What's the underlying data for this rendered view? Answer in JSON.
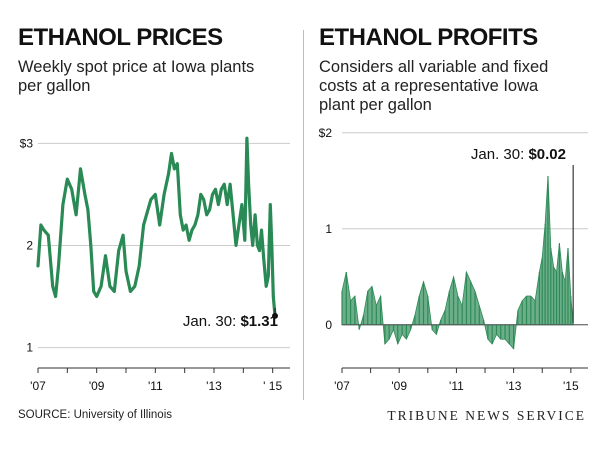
{
  "colors": {
    "line": "#2a8a55",
    "area": "#2e8b57",
    "grid": "#cccccc",
    "text": "#111111"
  },
  "left": {
    "title": "ETHANOL PRICES",
    "subtitle_lines": [
      "Weekly spot price at Iowa plants",
      "per gallon"
    ],
    "annotation_prefix": "Jan. 30: ",
    "annotation_value": "$1.31"
  },
  "right": {
    "title": "ETHANOL PROFITS",
    "subtitle_lines": [
      "Considers all variable and fixed",
      "costs at a representative Iowa",
      "plant per gallon"
    ],
    "annotation_prefix": "Jan. 30: ",
    "annotation_value": "$0.02"
  },
  "source": "SOURCE: University of Illinois",
  "credit": "TRIBUNE NEWS SERVICE",
  "chart_data": [
    {
      "type": "line",
      "title": "ETHANOL PRICES",
      "ylim": [
        0.8,
        3.15
      ],
      "y_ticks": [
        1,
        2,
        3
      ],
      "y_tick_labels": [
        "1",
        "2",
        "$3"
      ],
      "xlim": [
        2007,
        2015.25
      ],
      "x_ticks": [
        2007,
        2009,
        2011,
        2013,
        2015
      ],
      "x_tick_labels": [
        "'07",
        "'09",
        "'11",
        "'13",
        "' 15"
      ],
      "grid": true,
      "series": [
        {
          "x": [
            2007.0,
            2007.1,
            2007.2,
            2007.35,
            2007.5,
            2007.6,
            2007.7,
            2007.85,
            2008.0,
            2008.15,
            2008.3,
            2008.45,
            2008.6,
            2008.7,
            2008.8,
            2008.9,
            2009.0,
            2009.15,
            2009.3,
            2009.45,
            2009.6,
            2009.75,
            2009.9,
            2010.0,
            2010.15,
            2010.3,
            2010.45,
            2010.6,
            2010.7,
            2010.85,
            2011.0,
            2011.15,
            2011.3,
            2011.45,
            2011.55,
            2011.65,
            2011.75,
            2011.85,
            2011.95,
            2012.05,
            2012.15,
            2012.25,
            2012.35,
            2012.45,
            2012.55,
            2012.65,
            2012.75,
            2012.85,
            2012.95,
            2013.05,
            2013.15,
            2013.25,
            2013.35,
            2013.45,
            2013.55,
            2013.65,
            2013.75,
            2013.85,
            2013.95,
            2014.05,
            2014.12,
            2014.18,
            2014.25,
            2014.32,
            2014.4,
            2014.48,
            2014.55,
            2014.62,
            2014.7,
            2014.78,
            2014.85,
            2014.92,
            2014.97,
            2015.02,
            2015.08
          ],
          "y": [
            1.8,
            2.2,
            2.15,
            2.1,
            1.6,
            1.5,
            1.8,
            2.4,
            2.65,
            2.55,
            2.3,
            2.75,
            2.5,
            2.35,
            2.0,
            1.55,
            1.5,
            1.6,
            1.9,
            1.6,
            1.55,
            1.95,
            2.1,
            1.75,
            1.55,
            1.6,
            1.8,
            2.2,
            2.3,
            2.45,
            2.5,
            2.2,
            2.5,
            2.7,
            2.9,
            2.75,
            2.8,
            2.3,
            2.15,
            2.2,
            2.05,
            2.15,
            2.2,
            2.3,
            2.5,
            2.45,
            2.3,
            2.35,
            2.5,
            2.55,
            2.4,
            2.55,
            2.6,
            2.4,
            2.6,
            2.3,
            2.0,
            2.2,
            2.4,
            2.05,
            3.05,
            2.6,
            2.2,
            2.0,
            2.3,
            2.0,
            1.95,
            2.15,
            1.85,
            1.6,
            1.7,
            2.4,
            2.0,
            1.5,
            1.31
          ]
        }
      ],
      "annotation": {
        "x": 2015.08,
        "y": 1.31,
        "text": "Jan. 30: $1.31"
      }
    },
    {
      "type": "area",
      "title": "ETHANOL PROFITS",
      "ylim": [
        -0.45,
        2.05
      ],
      "y_ticks": [
        0,
        1,
        2
      ],
      "y_tick_labels": [
        "0",
        "1",
        "$2"
      ],
      "xlim": [
        2007,
        2015.25
      ],
      "x_ticks": [
        2007,
        2009,
        2011,
        2013,
        2015
      ],
      "x_tick_labels": [
        "'07",
        "'09",
        "'11",
        "'13",
        "'15"
      ],
      "grid": true,
      "series": [
        {
          "x": [
            2007.0,
            2007.15,
            2007.3,
            2007.45,
            2007.6,
            2007.75,
            2007.9,
            2008.05,
            2008.2,
            2008.35,
            2008.5,
            2008.65,
            2008.8,
            2008.95,
            2009.1,
            2009.25,
            2009.4,
            2009.55,
            2009.7,
            2009.85,
            2010.0,
            2010.15,
            2010.3,
            2010.45,
            2010.6,
            2010.75,
            2010.9,
            2011.05,
            2011.2,
            2011.35,
            2011.5,
            2011.65,
            2011.8,
            2011.95,
            2012.1,
            2012.25,
            2012.4,
            2012.55,
            2012.7,
            2012.85,
            2013.0,
            2013.15,
            2013.3,
            2013.45,
            2013.6,
            2013.75,
            2013.9,
            2014.0,
            2014.1,
            2014.2,
            2014.3,
            2014.4,
            2014.5,
            2014.6,
            2014.7,
            2014.8,
            2014.9,
            2015.0,
            2015.08
          ],
          "y": [
            0.35,
            0.55,
            0.25,
            0.3,
            -0.05,
            0.1,
            0.35,
            0.4,
            0.2,
            0.3,
            -0.2,
            -0.15,
            -0.05,
            -0.2,
            -0.1,
            -0.15,
            -0.05,
            0.1,
            0.3,
            0.45,
            0.3,
            -0.05,
            -0.1,
            0.05,
            0.15,
            0.35,
            0.5,
            0.3,
            0.2,
            0.55,
            0.45,
            0.35,
            0.2,
            0.05,
            -0.15,
            -0.2,
            -0.1,
            -0.15,
            -0.15,
            -0.2,
            -0.25,
            0.15,
            0.25,
            0.3,
            0.3,
            0.25,
            0.55,
            0.7,
            1.05,
            1.55,
            0.8,
            0.6,
            0.55,
            0.85,
            0.55,
            0.45,
            0.8,
            0.3,
            0.02
          ]
        }
      ],
      "annotation": {
        "x": 2015.08,
        "y": 0.02,
        "text": "Jan. 30: $0.02"
      }
    }
  ]
}
